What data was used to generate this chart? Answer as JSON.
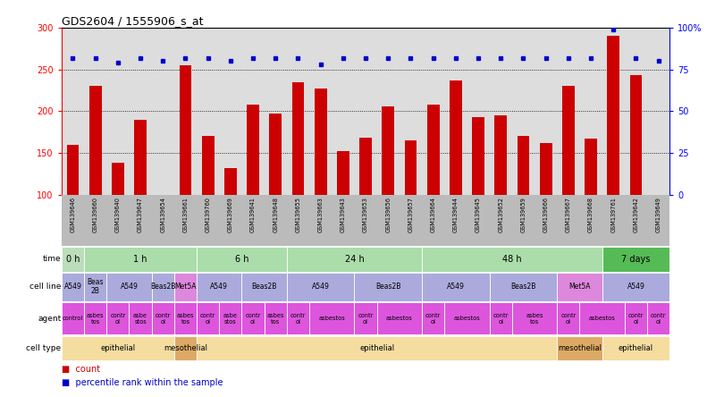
{
  "title": "GDS2604 / 1555906_s_at",
  "samples": [
    "GSM139646",
    "GSM139660",
    "GSM139640",
    "GSM139647",
    "GSM139654",
    "GSM139661",
    "GSM139760",
    "GSM139669",
    "GSM139641",
    "GSM139648",
    "GSM139655",
    "GSM139663",
    "GSM139643",
    "GSM139653",
    "GSM139656",
    "GSM139657",
    "GSM139664",
    "GSM139644",
    "GSM139645",
    "GSM139652",
    "GSM139659",
    "GSM139666",
    "GSM139667",
    "GSM139668",
    "GSM139761",
    "GSM139642",
    "GSM139649"
  ],
  "counts": [
    160,
    230,
    138,
    190,
    100,
    255,
    170,
    132,
    208,
    197,
    235,
    227,
    152,
    168,
    206,
    165,
    208,
    237,
    193,
    195,
    170,
    162,
    230,
    167,
    290,
    243,
    100
  ],
  "percentile": [
    82,
    82,
    79,
    82,
    80,
    82,
    82,
    80,
    82,
    82,
    82,
    78,
    82,
    82,
    82,
    82,
    82,
    82,
    82,
    82,
    82,
    82,
    82,
    82,
    99,
    82,
    80
  ],
  "ylim_left": [
    100,
    300
  ],
  "ylim_right": [
    0,
    100
  ],
  "yticks_left": [
    100,
    150,
    200,
    250,
    300
  ],
  "yticks_right": [
    0,
    25,
    50,
    75,
    100
  ],
  "bar_color": "#cc0000",
  "dot_color": "#0000cc",
  "chart_bg": "#dddddd",
  "xtick_bg": "#bbbbbb",
  "time_groups": [
    {
      "label": "0 h",
      "start": 0,
      "end": 1,
      "color": "#bbddbb"
    },
    {
      "label": "1 h",
      "start": 1,
      "end": 6,
      "color": "#aaddaa"
    },
    {
      "label": "6 h",
      "start": 6,
      "end": 10,
      "color": "#aaddaa"
    },
    {
      "label": "24 h",
      "start": 10,
      "end": 16,
      "color": "#aaddaa"
    },
    {
      "label": "48 h",
      "start": 16,
      "end": 24,
      "color": "#aaddaa"
    },
    {
      "label": "7 days",
      "start": 24,
      "end": 27,
      "color": "#55bb55"
    }
  ],
  "cell_line_groups": [
    {
      "label": "A549",
      "start": 0,
      "end": 1,
      "color": "#aaaadd"
    },
    {
      "label": "Beas\n2B",
      "start": 1,
      "end": 2,
      "color": "#aaaadd"
    },
    {
      "label": "A549",
      "start": 2,
      "end": 4,
      "color": "#aaaadd"
    },
    {
      "label": "Beas2B",
      "start": 4,
      "end": 5,
      "color": "#aaaadd"
    },
    {
      "label": "Met5A",
      "start": 5,
      "end": 6,
      "color": "#dd88dd"
    },
    {
      "label": "A549",
      "start": 6,
      "end": 8,
      "color": "#aaaadd"
    },
    {
      "label": "Beas2B",
      "start": 8,
      "end": 10,
      "color": "#aaaadd"
    },
    {
      "label": "A549",
      "start": 10,
      "end": 13,
      "color": "#aaaadd"
    },
    {
      "label": "Beas2B",
      "start": 13,
      "end": 16,
      "color": "#aaaadd"
    },
    {
      "label": "A549",
      "start": 16,
      "end": 19,
      "color": "#aaaadd"
    },
    {
      "label": "Beas2B",
      "start": 19,
      "end": 22,
      "color": "#aaaadd"
    },
    {
      "label": "Met5A",
      "start": 22,
      "end": 24,
      "color": "#dd88dd"
    },
    {
      "label": "A549",
      "start": 24,
      "end": 27,
      "color": "#aaaadd"
    }
  ],
  "agent_groups": [
    {
      "label": "control",
      "start": 0,
      "end": 1,
      "color": "#dd55dd"
    },
    {
      "label": "asbes\ntos",
      "start": 1,
      "end": 2,
      "color": "#dd55dd"
    },
    {
      "label": "contr\nol",
      "start": 2,
      "end": 3,
      "color": "#dd55dd"
    },
    {
      "label": "asbe\nstos",
      "start": 3,
      "end": 4,
      "color": "#dd55dd"
    },
    {
      "label": "contr\nol",
      "start": 4,
      "end": 5,
      "color": "#dd55dd"
    },
    {
      "label": "asbes\ntos",
      "start": 5,
      "end": 6,
      "color": "#dd55dd"
    },
    {
      "label": "contr\nol",
      "start": 6,
      "end": 7,
      "color": "#dd55dd"
    },
    {
      "label": "asbe\nstos",
      "start": 7,
      "end": 8,
      "color": "#dd55dd"
    },
    {
      "label": "contr\nol",
      "start": 8,
      "end": 9,
      "color": "#dd55dd"
    },
    {
      "label": "asbes\ntos",
      "start": 9,
      "end": 10,
      "color": "#dd55dd"
    },
    {
      "label": "contr\nol",
      "start": 10,
      "end": 11,
      "color": "#dd55dd"
    },
    {
      "label": "asbestos",
      "start": 11,
      "end": 13,
      "color": "#dd55dd"
    },
    {
      "label": "contr\nol",
      "start": 13,
      "end": 14,
      "color": "#dd55dd"
    },
    {
      "label": "asbestos",
      "start": 14,
      "end": 16,
      "color": "#dd55dd"
    },
    {
      "label": "contr\nol",
      "start": 16,
      "end": 17,
      "color": "#dd55dd"
    },
    {
      "label": "asbestos",
      "start": 17,
      "end": 19,
      "color": "#dd55dd"
    },
    {
      "label": "contr\nol",
      "start": 19,
      "end": 20,
      "color": "#dd55dd"
    },
    {
      "label": "asbes\ntos",
      "start": 20,
      "end": 22,
      "color": "#dd55dd"
    },
    {
      "label": "contr\nol",
      "start": 22,
      "end": 23,
      "color": "#dd55dd"
    },
    {
      "label": "asbestos",
      "start": 23,
      "end": 25,
      "color": "#dd55dd"
    },
    {
      "label": "contr\nol",
      "start": 25,
      "end": 26,
      "color": "#dd55dd"
    },
    {
      "label": "contr\nol",
      "start": 26,
      "end": 27,
      "color": "#dd55dd"
    }
  ],
  "cell_type_groups": [
    {
      "label": "epithelial",
      "start": 0,
      "end": 5,
      "color": "#f5dda0"
    },
    {
      "label": "mesothelial",
      "start": 5,
      "end": 6,
      "color": "#ddaa66"
    },
    {
      "label": "epithelial",
      "start": 6,
      "end": 22,
      "color": "#f5dda0"
    },
    {
      "label": "mesothelial",
      "start": 22,
      "end": 24,
      "color": "#ddaa66"
    },
    {
      "label": "epithelial",
      "start": 24,
      "end": 27,
      "color": "#f5dda0"
    }
  ]
}
